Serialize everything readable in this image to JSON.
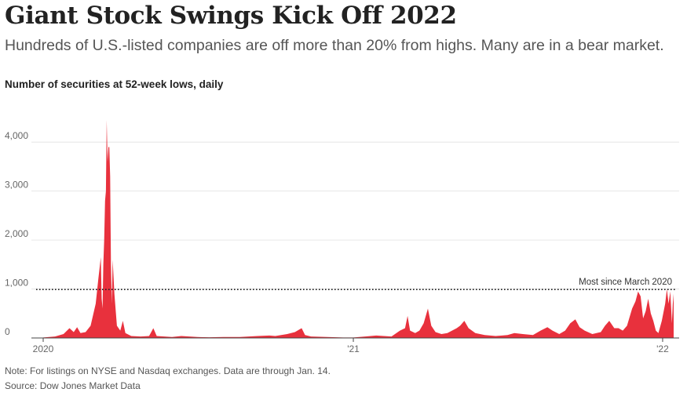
{
  "header": {
    "title": "Giant Stock Swings Kick Off 2022",
    "subtitle": "Hundreds of U.S.-listed companies are off more than 20% from highs. Many are in a bear market."
  },
  "footer": {
    "note": "Note: For listings on NYSE and Nasdaq exchanges. Data are through Jan. 14.",
    "source": "Source: Dow Jones Market Data"
  },
  "colors": {
    "area": "#e8313d",
    "grid": "#e6e6e6",
    "reference_line": "#222222"
  },
  "chart_data": {
    "type": "area",
    "title": "Number of securities at 52-week lows, daily",
    "ylim": [
      0,
      4500
    ],
    "yticks": [
      {
        "value": 0,
        "label": "0"
      },
      {
        "value": 1000,
        "label": "1,000"
      },
      {
        "value": 2000,
        "label": "2,000"
      },
      {
        "value": 3000,
        "label": "3,000"
      },
      {
        "value": 4000,
        "label": "4,000"
      }
    ],
    "xlim": [
      "2020-01-01",
      "2022-01-14"
    ],
    "xticks": [
      {
        "value": "2020-01-01",
        "label": "2020"
      },
      {
        "value": "2021-01-01",
        "label": "'21"
      },
      {
        "value": "2022-01-01",
        "label": "'22"
      }
    ],
    "grid": true,
    "reference_line": {
      "value": 990,
      "label": "Most since March 2020",
      "style": "dotted"
    },
    "series": [
      {
        "points": [
          [
            "2020-01-01",
            10
          ],
          [
            "2020-01-15",
            30
          ],
          [
            "2020-01-25",
            80
          ],
          [
            "2020-02-01",
            200
          ],
          [
            "2020-02-06",
            120
          ],
          [
            "2020-02-10",
            220
          ],
          [
            "2020-02-14",
            100
          ],
          [
            "2020-02-20",
            120
          ],
          [
            "2020-02-26",
            250
          ],
          [
            "2020-03-03",
            700
          ],
          [
            "2020-03-06",
            1200
          ],
          [
            "2020-03-09",
            1650
          ],
          [
            "2020-03-10",
            800
          ],
          [
            "2020-03-11",
            600
          ],
          [
            "2020-03-12",
            1500
          ],
          [
            "2020-03-13",
            2000
          ],
          [
            "2020-03-14",
            2800
          ],
          [
            "2020-03-15",
            3000
          ],
          [
            "2020-03-16",
            4450
          ],
          [
            "2020-03-17",
            3600
          ],
          [
            "2020-03-18",
            3900
          ],
          [
            "2020-03-19",
            3900
          ],
          [
            "2020-03-20",
            3300
          ],
          [
            "2020-03-21",
            1500
          ],
          [
            "2020-03-22",
            700
          ],
          [
            "2020-03-23",
            1600
          ],
          [
            "2020-03-25",
            900
          ],
          [
            "2020-03-28",
            250
          ],
          [
            "2020-04-01",
            150
          ],
          [
            "2020-04-04",
            350
          ],
          [
            "2020-04-07",
            100
          ],
          [
            "2020-04-14",
            40
          ],
          [
            "2020-04-25",
            30
          ],
          [
            "2020-05-05",
            40
          ],
          [
            "2020-05-10",
            200
          ],
          [
            "2020-05-14",
            40
          ],
          [
            "2020-06-01",
            20
          ],
          [
            "2020-06-12",
            40
          ],
          [
            "2020-07-01",
            20
          ],
          [
            "2020-07-15",
            15
          ],
          [
            "2020-08-01",
            20
          ],
          [
            "2020-08-20",
            20
          ],
          [
            "2020-09-10",
            40
          ],
          [
            "2020-09-24",
            50
          ],
          [
            "2020-10-01",
            40
          ],
          [
            "2020-10-15",
            80
          ],
          [
            "2020-10-24",
            120
          ],
          [
            "2020-11-01",
            200
          ],
          [
            "2020-11-05",
            60
          ],
          [
            "2020-11-12",
            30
          ],
          [
            "2020-12-01",
            20
          ],
          [
            "2020-12-20",
            10
          ],
          [
            "2021-01-01",
            10
          ],
          [
            "2021-01-15",
            30
          ],
          [
            "2021-01-28",
            50
          ],
          [
            "2021-02-15",
            30
          ],
          [
            "2021-02-25",
            150
          ],
          [
            "2021-03-03",
            200
          ],
          [
            "2021-03-06",
            450
          ],
          [
            "2021-03-09",
            150
          ],
          [
            "2021-03-15",
            100
          ],
          [
            "2021-03-20",
            150
          ],
          [
            "2021-03-25",
            300
          ],
          [
            "2021-03-30",
            600
          ],
          [
            "2021-04-03",
            250
          ],
          [
            "2021-04-08",
            120
          ],
          [
            "2021-04-15",
            80
          ],
          [
            "2021-04-22",
            100
          ],
          [
            "2021-05-03",
            200
          ],
          [
            "2021-05-07",
            250
          ],
          [
            "2021-05-12",
            350
          ],
          [
            "2021-05-17",
            200
          ],
          [
            "2021-05-25",
            100
          ],
          [
            "2021-06-05",
            60
          ],
          [
            "2021-06-18",
            40
          ],
          [
            "2021-07-02",
            60
          ],
          [
            "2021-07-10",
            100
          ],
          [
            "2021-07-20",
            80
          ],
          [
            "2021-08-01",
            60
          ],
          [
            "2021-08-10",
            150
          ],
          [
            "2021-08-18",
            220
          ],
          [
            "2021-08-24",
            150
          ],
          [
            "2021-09-01",
            80
          ],
          [
            "2021-09-08",
            150
          ],
          [
            "2021-09-14",
            300
          ],
          [
            "2021-09-20",
            380
          ],
          [
            "2021-09-25",
            220
          ],
          [
            "2021-10-01",
            150
          ],
          [
            "2021-10-10",
            80
          ],
          [
            "2021-10-20",
            120
          ],
          [
            "2021-10-25",
            250
          ],
          [
            "2021-10-30",
            350
          ],
          [
            "2021-11-05",
            200
          ],
          [
            "2021-11-10",
            200
          ],
          [
            "2021-11-15",
            150
          ],
          [
            "2021-11-20",
            250
          ],
          [
            "2021-11-26",
            600
          ],
          [
            "2021-11-30",
            750
          ],
          [
            "2021-12-03",
            950
          ],
          [
            "2021-12-06",
            850
          ],
          [
            "2021-12-09",
            400
          ],
          [
            "2021-12-12",
            550
          ],
          [
            "2021-12-15",
            800
          ],
          [
            "2021-12-18",
            500
          ],
          [
            "2021-12-21",
            350
          ],
          [
            "2021-12-24",
            150
          ],
          [
            "2021-12-27",
            100
          ],
          [
            "2021-12-31",
            350
          ],
          [
            "2022-01-04",
            700
          ],
          [
            "2022-01-06",
            1000
          ],
          [
            "2022-01-08",
            700
          ],
          [
            "2022-01-10",
            950
          ],
          [
            "2022-01-12",
            300
          ],
          [
            "2022-01-13",
            700
          ],
          [
            "2022-01-14",
            900
          ]
        ]
      }
    ]
  }
}
